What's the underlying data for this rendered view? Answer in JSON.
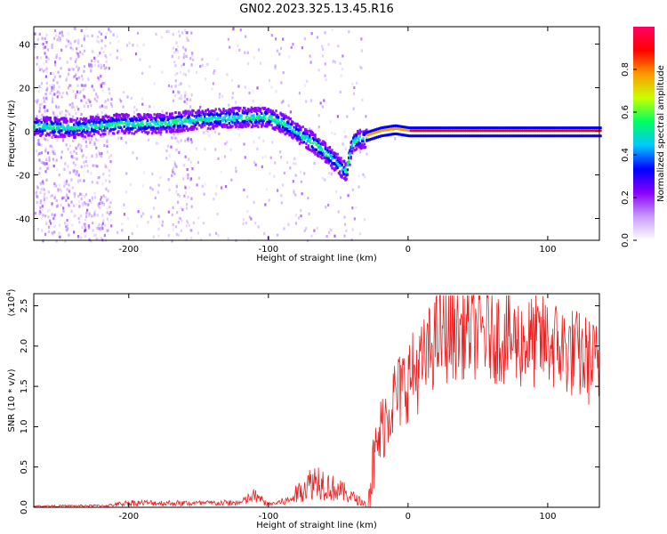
{
  "title": "GN02.2023.325.13.45.R16",
  "chart_data": [
    {
      "type": "heatmap",
      "xlabel": "Height of straight line (km)",
      "ylabel": "Frequency (Hz)",
      "xlim": [
        -268,
        137
      ],
      "ylim": [
        -50,
        48
      ],
      "xticks": [
        -200,
        -100,
        0,
        100
      ],
      "yticks": [
        -40,
        -20,
        0,
        20,
        40
      ],
      "colorbar": {
        "label": "Normalized spectral amplitude",
        "range": [
          0.0,
          1.0
        ],
        "ticks": [
          "0.0",
          "0.2",
          "0.4",
          "0.6",
          "0.8"
        ],
        "colors": [
          "#ffffff",
          "#c99bff",
          "#8a00ff",
          "#0000ff",
          "#00c8ff",
          "#00ff60",
          "#c8ff00",
          "#ff9a00",
          "#ff0000",
          "#ff0066"
        ]
      },
      "ridge": {
        "description_points_x": [
          -268,
          -240,
          -210,
          -180,
          -150,
          -120,
          -100,
          -90,
          -80,
          -70,
          -60,
          -50,
          -45,
          -40,
          -30,
          -20,
          -10,
          0,
          137
        ],
        "frequency_y": [
          3,
          2,
          4,
          4,
          6,
          7,
          7,
          4,
          0,
          -4,
          -9,
          -15,
          -18,
          -4,
          -2,
          0,
          1,
          0,
          0
        ]
      }
    },
    {
      "type": "line",
      "xlabel": "Height of straight line (km)",
      "ylabel": "SNR (10 * v/v)",
      "scale_label": "(x10",
      "scale_exp": "4",
      "scale_close": ")",
      "xlim": [
        -268,
        137
      ],
      "ylim": [
        0,
        2.65
      ],
      "xticks": [
        -200,
        -100,
        0,
        100
      ],
      "yticks": [
        "0.0",
        "0.5",
        "1.0",
        "1.5",
        "2.0",
        "2.5"
      ],
      "color": "#ee2020",
      "envelope_x": [
        -268,
        -215,
        -200,
        -150,
        -120,
        -110,
        -100,
        -85,
        -75,
        -65,
        -55,
        -45,
        -30,
        -25,
        -20,
        -15,
        -10,
        -5,
        0,
        10,
        20,
        40,
        60,
        80,
        100,
        120,
        137
      ],
      "envelope_y": [
        0.02,
        0.03,
        0.08,
        0.07,
        0.08,
        0.2,
        0.05,
        0.12,
        0.35,
        0.5,
        0.35,
        0.25,
        0.05,
        0.5,
        0.9,
        1.2,
        1.35,
        1.45,
        1.6,
        1.75,
        2.1,
        2.2,
        2.15,
        2.05,
        2.05,
        1.9,
        1.75
      ]
    }
  ]
}
